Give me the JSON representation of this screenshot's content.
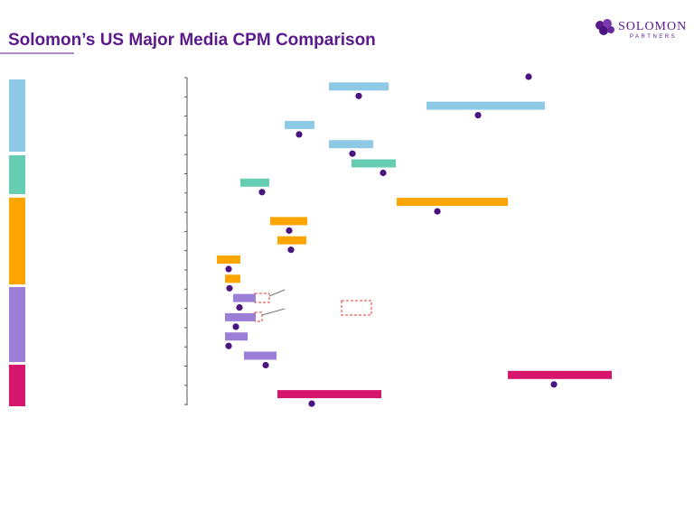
{
  "chart_data": {
    "type": "range-dot",
    "title": "Solomon’s US Major Media CPM Comparison",
    "logo_name": "SOLOMON",
    "logo_sub": "PARTNERS",
    "categories": [
      null,
      null,
      null,
      null,
      null,
      null,
      null,
      null,
      null,
      null,
      null,
      null,
      null,
      null,
      null,
      null,
      null,
      null
    ],
    "xlim": [
      0,
      50
    ],
    "series": [
      {
        "color": "#4b1380",
        "values": [
          37.8,
          19.0,
          32.2,
          12.4,
          18.3,
          21.7,
          8.3,
          27.7,
          11.3,
          11.5,
          4.6,
          4.7,
          5.8,
          5.4,
          4.6,
          8.7,
          40.6,
          13.8
        ]
      },
      {
        "colors": [
          null,
          "#8ecae6",
          "#8ecae6",
          "#8ecae6",
          "#8ecae6",
          "#66cdb3",
          "#66cdb3",
          "#ffa500",
          "#ffa500",
          "#ffa500",
          "#ffa500",
          "#ffa500",
          "#9b7fd6",
          "#9b7fd6",
          "#9b7fd6",
          "#9b7fd6",
          "#d6156c",
          "#d6156c"
        ],
        "low": [
          null,
          15.7,
          26.5,
          10.8,
          15.7,
          18.2,
          5.9,
          23.2,
          9.2,
          10.0,
          3.3,
          4.2,
          5.1,
          4.2,
          4.2,
          6.3,
          35.5,
          10.0
        ],
        "high": [
          null,
          22.3,
          39.6,
          14.1,
          20.6,
          23.1,
          9.1,
          35.5,
          13.3,
          13.2,
          5.9,
          5.9,
          7.6,
          7.6,
          6.7,
          9.9,
          47.0,
          21.5
        ]
      }
    ]
  }
}
